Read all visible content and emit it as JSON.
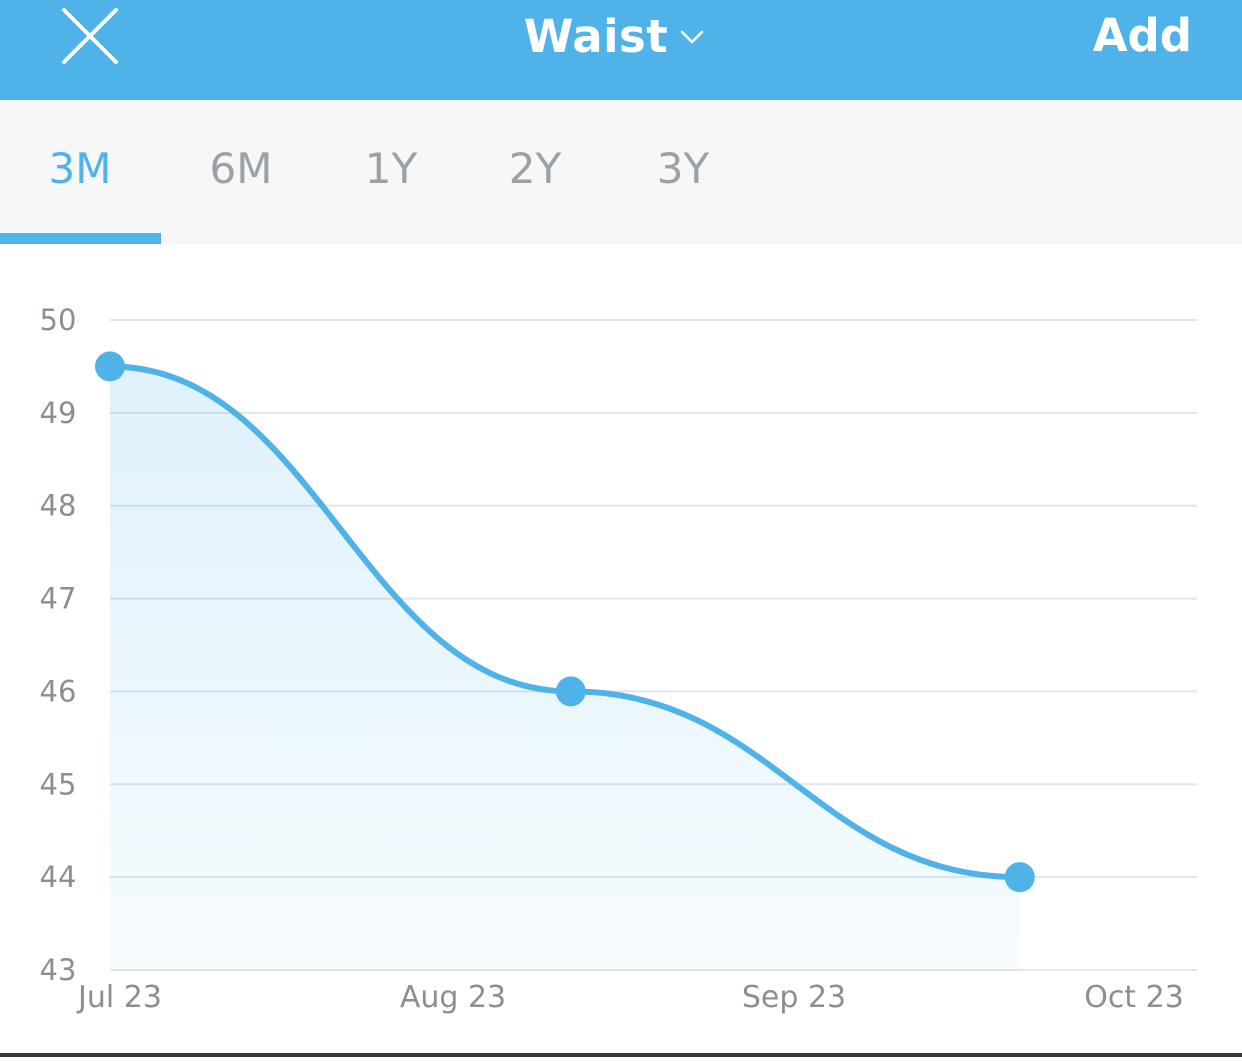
{
  "header": {
    "title": "Waist",
    "add_label": "Add",
    "background_color": "#4fb3ea"
  },
  "tabs": [
    {
      "label": "3M",
      "active": true
    },
    {
      "label": "6M",
      "active": false
    },
    {
      "label": "1Y",
      "active": false
    },
    {
      "label": "2Y",
      "active": false
    },
    {
      "label": "3Y",
      "active": false
    }
  ],
  "chart_data": {
    "type": "area",
    "title": "",
    "xlabel": "",
    "ylabel": "",
    "x_ticks": [
      "Jul 23",
      "Aug 23",
      "Sep 23",
      "Oct 23"
    ],
    "y_ticks": [
      50,
      49,
      48,
      47,
      46,
      45,
      44,
      43
    ],
    "ylim": [
      43,
      50
    ],
    "xlim": [
      "2023-07-23",
      "2023-10-23"
    ],
    "grid": true,
    "series": [
      {
        "points": [
          {
            "x": "2023-07-23",
            "y": 49.5
          },
          {
            "x": "2023-08-31",
            "y": 46
          },
          {
            "x": "2023-10-08",
            "y": 44
          }
        ]
      }
    ],
    "line_color": "#4fb3ea"
  }
}
